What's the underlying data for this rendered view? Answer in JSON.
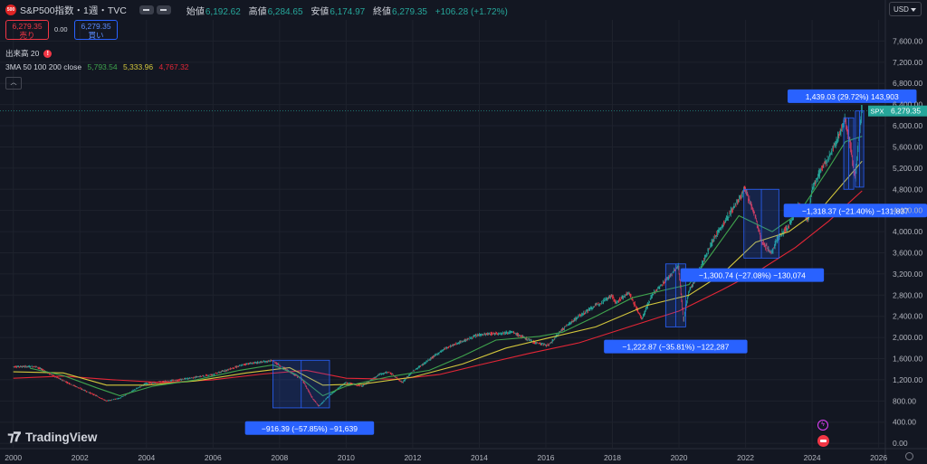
{
  "header": {
    "symbol": "S&P500指数・1週・TVC",
    "logo_text": "500",
    "o_label": "始値",
    "o_value": "6,192.62",
    "h_label": "高値",
    "h_value": "6,284.65",
    "l_label": "安値",
    "l_value": "6,174.97",
    "c_label": "終値",
    "c_value": "6,279.35",
    "change": "+106.28 (+1.72%)"
  },
  "trade": {
    "sell_price": "6,279.35",
    "sell_label": "売り",
    "spread": "0.00",
    "buy_price": "6,279.35",
    "buy_label": "買い"
  },
  "volume": {
    "label": "出来高 20",
    "warn": "!"
  },
  "ma": {
    "label": "3MA 50 100 200 close",
    "v50": "5,793.54",
    "v100": "5,333.96",
    "v200": "4,767.32"
  },
  "currency": "USD",
  "brand": "TradingView",
  "colors": {
    "up": "#26a69a",
    "down": "#f23645",
    "ma50": "#3fa34d",
    "ma100": "#d4c73c",
    "ma200": "#e32636",
    "box": "#2962ff"
  },
  "chart_data": {
    "type": "line",
    "xlim": [
      1999.6,
      2026.2
    ],
    "ylim": [
      -100,
      8000
    ],
    "x_ticks": [
      "2000",
      "2002",
      "2004",
      "2006",
      "2008",
      "2010",
      "2012",
      "2014",
      "2016",
      "2018",
      "2020",
      "2022",
      "2024",
      "2026"
    ],
    "y_ticks": [
      "0.00",
      "400.00",
      "800.00",
      "1,200.00",
      "1,600.00",
      "2,000.00",
      "2,400.00",
      "2,800.00",
      "3,200.00",
      "3,600.00",
      "4,000.00",
      "4,400.00",
      "4,800.00",
      "5,200.00",
      "5,600.00",
      "6,000.00",
      "6,400.00",
      "6,800.00",
      "7,200.00",
      "7,600.00"
    ],
    "price_label": {
      "symbol": "SPX",
      "value": "6,279.35",
      "y": 6279.35
    },
    "price_x": [
      2000,
      2000.7,
      2001.3,
      2001.8,
      2002.5,
      2002.8,
      2003.2,
      2004,
      2005,
      2006,
      2007,
      2007.8,
      2008.2,
      2008.7,
      2009.0,
      2009.2,
      2009.5,
      2010,
      2010.5,
      2011,
      2011.3,
      2011.7,
      2012,
      2013,
      2014,
      2015,
      2015.7,
      2016.1,
      2016.5,
      2017,
      2018,
      2018.1,
      2018.5,
      2018.9,
      2019.2,
      2019.5,
      2020.0,
      2020.15,
      2020.3,
      2020.5,
      2021,
      2021.5,
      2022.0,
      2022.3,
      2022.5,
      2022.8,
      2023,
      2023.3,
      2023.6,
      2023.9,
      2024,
      2024.3,
      2024.6,
      2025.0,
      2025.15,
      2025.3,
      2025.5
    ],
    "price_y": [
      1450,
      1450,
      1250,
      1100,
      900,
      800,
      850,
      1130,
      1200,
      1300,
      1500,
      1560,
      1400,
      1200,
      850,
      700,
      900,
      1150,
      1080,
      1300,
      1350,
      1150,
      1350,
      1800,
      2050,
      2100,
      1900,
      1850,
      2150,
      2400,
      2800,
      2650,
      2850,
      2350,
      2800,
      3000,
      3350,
      2300,
      2850,
      3100,
      3800,
      4300,
      4800,
      4300,
      3800,
      3600,
      3900,
      4100,
      4500,
      4200,
      4800,
      5200,
      5500,
      6100,
      5700,
      5000,
      6280
    ],
    "ma50": [
      [
        2000.5,
        1420
      ],
      [
        2001.5,
        1280
      ],
      [
        2002.5,
        1050
      ],
      [
        2003.2,
        900
      ],
      [
        2004.2,
        1080
      ],
      [
        2005.5,
        1200
      ],
      [
        2006.8,
        1380
      ],
      [
        2007.8,
        1480
      ],
      [
        2008.5,
        1300
      ],
      [
        2009.3,
        900
      ],
      [
        2010,
        1080
      ],
      [
        2011.3,
        1260
      ],
      [
        2012.5,
        1380
      ],
      [
        2013.5,
        1650
      ],
      [
        2014.5,
        1950
      ],
      [
        2015.8,
        2020
      ],
      [
        2016.5,
        2100
      ],
      [
        2017.5,
        2400
      ],
      [
        2018.6,
        2750
      ],
      [
        2019.6,
        2900
      ],
      [
        2020.3,
        3000
      ],
      [
        2021,
        3600
      ],
      [
        2021.8,
        4300
      ],
      [
        2022.8,
        4000
      ],
      [
        2023.6,
        4350
      ],
      [
        2024.4,
        5100
      ],
      [
        2025.0,
        5700
      ],
      [
        2025.5,
        5800
      ]
    ],
    "ma100": [
      [
        2000,
        1350
      ],
      [
        2001.5,
        1330
      ],
      [
        2002.8,
        1100
      ],
      [
        2004,
        1100
      ],
      [
        2005.5,
        1180
      ],
      [
        2007,
        1330
      ],
      [
        2008.3,
        1430
      ],
      [
        2009.3,
        1100
      ],
      [
        2010.5,
        1120
      ],
      [
        2012,
        1250
      ],
      [
        2013.5,
        1500
      ],
      [
        2014.8,
        1800
      ],
      [
        2016,
        1980
      ],
      [
        2017.5,
        2200
      ],
      [
        2019,
        2600
      ],
      [
        2020.3,
        2800
      ],
      [
        2021.3,
        3200
      ],
      [
        2022.3,
        3800
      ],
      [
        2023.3,
        4000
      ],
      [
        2024.3,
        4450
      ],
      [
        2025.5,
        5330
      ]
    ],
    "ma200": [
      [
        2000,
        1230
      ],
      [
        2001.5,
        1270
      ],
      [
        2003,
        1200
      ],
      [
        2004.5,
        1150
      ],
      [
        2006,
        1200
      ],
      [
        2007.5,
        1310
      ],
      [
        2008.8,
        1380
      ],
      [
        2010,
        1230
      ],
      [
        2011.5,
        1210
      ],
      [
        2012.8,
        1300
      ],
      [
        2014,
        1480
      ],
      [
        2015.5,
        1700
      ],
      [
        2017,
        1900
      ],
      [
        2018.5,
        2200
      ],
      [
        2020,
        2500
      ],
      [
        2021.3,
        2900
      ],
      [
        2022.5,
        3300
      ],
      [
        2023.5,
        3700
      ],
      [
        2024.5,
        4200
      ],
      [
        2025.5,
        4770
      ]
    ],
    "measurements": [
      {
        "label": "−916.39 (−57.85%) −91,639",
        "x0": 2007.8,
        "x1": 2009.5,
        "y0": 670,
        "y1": 1570,
        "label_x": 2008.9,
        "label_y": 280
      },
      {
        "label": "−1,222.87 (−35.81%) −122,287",
        "x0": 2019.6,
        "x1": 2020.2,
        "y0": 2200,
        "y1": 3390,
        "label_x": 2019.9,
        "label_y": 1820
      },
      {
        "label": "−1,300.74 (−27.08%) −130,074",
        "x0": 2021.95,
        "x1": 2023.0,
        "y0": 3500,
        "y1": 4800,
        "label_x": 2022.2,
        "label_y": 3170
      },
      {
        "label": "−1,318.37 (−21.40%) −131,837",
        "x0": 2024.95,
        "x1": 2025.25,
        "y0": 4800,
        "y1": 6150,
        "label_x": 2025.3,
        "label_y": 4390
      },
      {
        "label": "1,439.03 (29.72%) 143,903",
        "x0": 2025.3,
        "x1": 2025.55,
        "y0": 4840,
        "y1": 6280,
        "label_x": 2025.2,
        "label_y": 6550
      }
    ]
  }
}
